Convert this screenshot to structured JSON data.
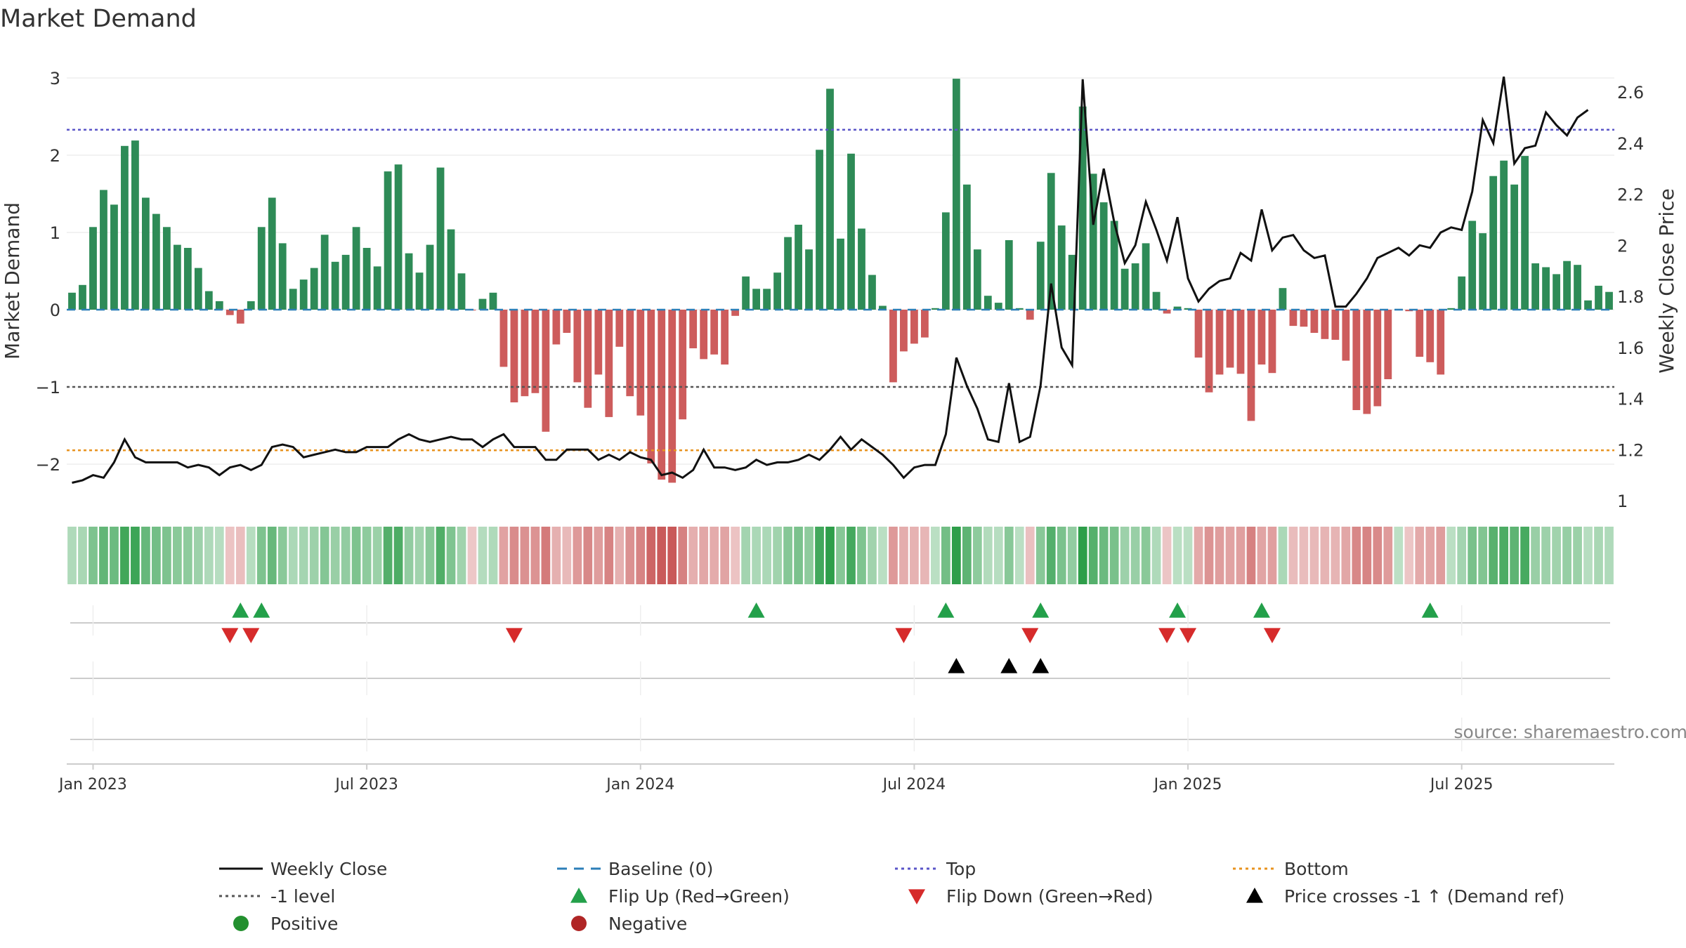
{
  "chart_data": {
    "type": "bar",
    "title": "Market Demand",
    "ylabel": "Market Demand",
    "y2label": "Weekly Close Price",
    "ylim": [
      -2.5,
      3.2
    ],
    "y2lim": [
      1.0,
      2.65
    ],
    "yticks": [
      {
        "v": 3,
        "label": "3"
      },
      {
        "v": 2,
        "label": "2"
      },
      {
        "v": 1,
        "label": "1"
      },
      {
        "v": 0,
        "label": "0"
      },
      {
        "v": -1,
        "label": "−1"
      },
      {
        "v": -2,
        "label": "−2"
      }
    ],
    "y2ticks": [
      {
        "v": 2.6,
        "label": "2.6"
      },
      {
        "v": 2.4,
        "label": "2.4"
      },
      {
        "v": 2.2,
        "label": "2.2"
      },
      {
        "v": 2.0,
        "label": "2"
      },
      {
        "v": 1.8,
        "label": "1.8"
      },
      {
        "v": 1.6,
        "label": "1.6"
      },
      {
        "v": 1.4,
        "label": "1.4"
      },
      {
        "v": 1.2,
        "label": "1.2"
      },
      {
        "v": 1.0,
        "label": "1"
      }
    ],
    "xticks": [
      {
        "week": 2,
        "label": "Jan 2023"
      },
      {
        "week": 28,
        "label": "Jul 2023"
      },
      {
        "week": 54,
        "label": "Jan 2024"
      },
      {
        "week": 80,
        "label": "Jul 2024"
      },
      {
        "week": 106,
        "label": "Jan 2025"
      },
      {
        "week": 132,
        "label": "Jul 2025"
      }
    ],
    "reference_lines": {
      "top": 2.33,
      "minus_one": -1.0,
      "bottom": -1.82,
      "baseline": 0
    },
    "demand": [
      0.22,
      0.32,
      1.07,
      1.55,
      1.36,
      2.12,
      2.19,
      1.45,
      1.24,
      1.07,
      0.84,
      0.8,
      0.54,
      0.24,
      0.11,
      -0.07,
      -0.18,
      0.11,
      1.07,
      1.45,
      0.86,
      0.27,
      0.39,
      0.54,
      0.97,
      0.62,
      0.71,
      1.07,
      0.8,
      0.56,
      1.79,
      1.88,
      0.73,
      0.48,
      0.84,
      1.84,
      1.04,
      0.47,
      -0.01,
      0.14,
      0.22,
      -0.74,
      -1.2,
      -1.12,
      -1.08,
      -1.58,
      -0.45,
      -0.3,
      -0.94,
      -1.27,
      -0.84,
      -1.39,
      -0.48,
      -1.12,
      -1.37,
      -1.99,
      -2.2,
      -2.24,
      -1.42,
      -0.5,
      -0.64,
      -0.58,
      -0.71,
      -0.08,
      0.43,
      0.27,
      0.27,
      0.48,
      0.94,
      1.1,
      0.78,
      2.07,
      2.86,
      0.92,
      2.02,
      1.05,
      0.45,
      0.05,
      -0.94,
      -0.54,
      -0.44,
      -0.36,
      0.02,
      1.26,
      2.99,
      1.62,
      0.78,
      0.18,
      0.09,
      0.9,
      0.02,
      -0.13,
      0.88,
      1.77,
      1.09,
      0.71,
      2.63,
      1.76,
      1.39,
      1.15,
      0.53,
      0.6,
      0.86,
      0.23,
      -0.05,
      0.04,
      0.02,
      -0.62,
      -1.07,
      -0.84,
      -0.75,
      -0.83,
      -1.44,
      -0.71,
      -0.82,
      0.28,
      -0.21,
      -0.22,
      -0.3,
      -0.38,
      -0.39,
      -0.66,
      -1.3,
      -1.35,
      -1.25,
      -0.9,
      0.01,
      -0.02,
      -0.61,
      -0.68,
      -0.84,
      0.02,
      0.43,
      1.15,
      0.99,
      1.73,
      1.93,
      1.62,
      1.99,
      0.6,
      0.55,
      0.46,
      0.63,
      0.58,
      0.12,
      0.31,
      0.23
    ],
    "weekly_close": [
      1.07,
      1.08,
      1.1,
      1.09,
      1.15,
      1.24,
      1.17,
      1.15,
      1.15,
      1.15,
      1.15,
      1.13,
      1.14,
      1.13,
      1.1,
      1.13,
      1.14,
      1.12,
      1.14,
      1.21,
      1.22,
      1.21,
      1.17,
      1.18,
      1.19,
      1.2,
      1.19,
      1.19,
      1.21,
      1.21,
      1.21,
      1.24,
      1.26,
      1.24,
      1.23,
      1.24,
      1.25,
      1.24,
      1.24,
      1.21,
      1.24,
      1.26,
      1.21,
      1.21,
      1.21,
      1.16,
      1.16,
      1.2,
      1.2,
      1.2,
      1.16,
      1.18,
      1.16,
      1.19,
      1.17,
      1.16,
      1.1,
      1.11,
      1.09,
      1.12,
      1.2,
      1.13,
      1.13,
      1.12,
      1.13,
      1.16,
      1.14,
      1.15,
      1.15,
      1.16,
      1.18,
      1.16,
      1.2,
      1.25,
      1.2,
      1.24,
      1.21,
      1.18,
      1.14,
      1.09,
      1.13,
      1.14,
      1.14,
      1.26,
      1.56,
      1.45,
      1.36,
      1.24,
      1.23,
      1.46,
      1.23,
      1.25,
      1.45,
      1.85,
      1.6,
      1.53,
      2.65,
      2.08,
      2.3,
      2.09,
      1.93,
      2.0,
      2.17,
      2.06,
      1.94,
      2.11,
      1.87,
      1.78,
      1.83,
      1.86,
      1.87,
      1.97,
      1.94,
      2.14,
      1.98,
      2.03,
      2.04,
      1.98,
      1.95,
      1.96,
      1.76,
      1.76,
      1.81,
      1.87,
      1.95,
      1.97,
      1.99,
      1.96,
      2.0,
      1.99,
      2.05,
      2.07,
      2.06,
      2.21,
      2.49,
      2.4,
      2.66,
      2.32,
      2.38,
      2.39,
      2.52,
      2.47,
      2.43,
      2.5,
      2.53
    ],
    "flip_up_weeks": [
      16,
      18,
      65,
      83,
      92,
      105,
      113,
      129
    ],
    "flip_down_weeks": [
      15,
      17,
      42,
      79,
      91,
      104,
      106,
      114
    ],
    "price_cross_weeks": [
      84,
      89,
      92
    ],
    "source": "source: sharemaestro.com",
    "legend": [
      {
        "label": "Weekly Close",
        "kind": "line",
        "color": "#111111"
      },
      {
        "label": "Baseline (0)",
        "kind": "dash",
        "color": "#2c7fb8"
      },
      {
        "label": "Top",
        "kind": "dot",
        "color": "#5a55c8"
      },
      {
        "label": "Bottom",
        "kind": "dot",
        "color": "#e8931f"
      },
      {
        "label": "-1 level",
        "kind": "dot",
        "color": "#555555"
      },
      {
        "label": "Flip Up (Red→Green)",
        "kind": "tri-up",
        "color": "#23a04a"
      },
      {
        "label": "Flip Down (Green→Red)",
        "kind": "tri-down",
        "color": "#d62b2b"
      },
      {
        "label": "Price crosses -1 ↑ (Demand ref)",
        "kind": "tri-up",
        "color": "#000000"
      },
      {
        "label": "Positive",
        "kind": "circle",
        "color": "#23902f"
      },
      {
        "label": "Negative",
        "kind": "circle",
        "color": "#b02626"
      }
    ],
    "colors": {
      "positive_bar": "#2e8b57",
      "negative_bar": "#cd5c5c",
      "price_line": "#111111",
      "baseline": "#2c7fb8",
      "top": "#5a55c8",
      "bottom": "#e8931f",
      "minus_one": "#555555",
      "flip_up": "#23a04a",
      "flip_down": "#d62b2b",
      "cross": "#000000"
    }
  }
}
